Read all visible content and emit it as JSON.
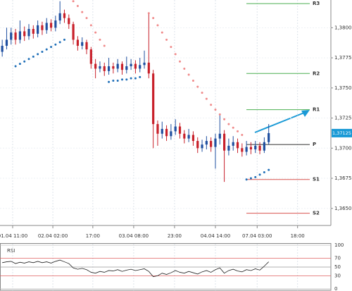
{
  "chart_data": {
    "type": "candlestick",
    "open": [
      1.378,
      1.3785,
      1.379,
      1.3796,
      1.379,
      1.3797,
      1.3793,
      1.3799,
      1.3795,
      1.3802,
      1.3798,
      1.3804,
      1.38,
      1.3806,
      1.3812,
      1.3808,
      1.3803,
      1.379,
      1.3785,
      1.3788,
      1.3782,
      1.377,
      1.3766,
      1.3768,
      1.3764,
      1.3768,
      1.3766,
      1.377,
      1.3765,
      1.3768,
      1.377,
      1.3766,
      1.3769,
      1.3771,
      1.3762,
      1.372,
      1.3712,
      1.3716,
      1.371,
      1.3714,
      1.3718,
      1.3712,
      1.3708,
      1.3711,
      1.3706,
      1.37,
      1.3703,
      1.3706,
      1.3701,
      1.3708,
      1.3712,
      1.3698,
      1.3702,
      1.3705,
      1.37,
      1.3697,
      1.3701,
      1.3699,
      1.3702,
      1.3698,
      1.3705
    ],
    "high": [
      1.379,
      1.38,
      1.38,
      1.3799,
      1.3806,
      1.3801,
      1.3803,
      1.3802,
      1.3806,
      1.3805,
      1.3808,
      1.3807,
      1.381,
      1.3822,
      1.3815,
      1.3811,
      1.3805,
      1.3793,
      1.3792,
      1.379,
      1.3784,
      1.3774,
      1.3772,
      1.3771,
      1.3775,
      1.3771,
      1.3774,
      1.3772,
      1.3776,
      1.3774,
      1.3773,
      1.3775,
      1.3781,
      1.3812,
      1.3765,
      1.3723,
      1.3722,
      1.3719,
      1.372,
      1.3724,
      1.3721,
      1.3715,
      1.3716,
      1.3714,
      1.3709,
      1.3707,
      1.371,
      1.3709,
      1.3712,
      1.3728,
      1.3715,
      1.3708,
      1.371,
      1.3708,
      1.3704,
      1.3706,
      1.3705,
      1.3706,
      1.3705,
      1.3709,
      1.372
    ],
    "low": [
      1.3776,
      1.3782,
      1.3786,
      1.3786,
      1.3787,
      1.3789,
      1.379,
      1.3791,
      1.3792,
      1.3794,
      1.3795,
      1.3797,
      1.3797,
      1.3803,
      1.3804,
      1.3799,
      1.3786,
      1.3781,
      1.3782,
      1.3778,
      1.3766,
      1.3758,
      1.3763,
      1.376,
      1.3761,
      1.3762,
      1.3763,
      1.3761,
      1.3762,
      1.3765,
      1.3762,
      1.3763,
      1.3766,
      1.3758,
      1.37,
      1.3702,
      1.3708,
      1.3706,
      1.3707,
      1.3711,
      1.3708,
      1.3704,
      1.3705,
      1.3702,
      1.3696,
      1.3697,
      1.3699,
      1.3697,
      1.3683,
      1.3703,
      1.3672,
      1.3694,
      1.3698,
      1.3696,
      1.3693,
      1.3694,
      1.3695,
      1.3696,
      1.3695,
      1.3696,
      1.3703
    ],
    "close": [
      1.3785,
      1.379,
      1.3796,
      1.379,
      1.3797,
      1.3793,
      1.3799,
      1.3795,
      1.3802,
      1.3798,
      1.3804,
      1.38,
      1.3806,
      1.3812,
      1.3808,
      1.3803,
      1.379,
      1.3785,
      1.3788,
      1.3782,
      1.377,
      1.3766,
      1.3768,
      1.3764,
      1.3768,
      1.3766,
      1.377,
      1.3765,
      1.3768,
      1.377,
      1.3766,
      1.3769,
      1.3771,
      1.3762,
      1.372,
      1.3712,
      1.3716,
      1.371,
      1.3714,
      1.3718,
      1.3712,
      1.3708,
      1.3711,
      1.3706,
      1.37,
      1.3703,
      1.3706,
      1.3701,
      1.3708,
      1.3712,
      1.3698,
      1.3702,
      1.3705,
      1.37,
      1.3697,
      1.3701,
      1.3699,
      1.3702,
      1.3698,
      1.3705,
      1.37125
    ],
    "up_color": "#1f4fa0",
    "down_color": "#c8202a",
    "sar": [
      null,
      null,
      null,
      1.3768,
      1.377,
      1.3772,
      1.3774,
      1.3776,
      1.3778,
      1.378,
      1.3782,
      1.3784,
      1.3786,
      1.3788,
      1.379,
      null,
      1.3822,
      1.3818,
      1.3813,
      1.3808,
      1.3802,
      1.3796,
      1.379,
      1.3785,
      1.3755,
      1.3756,
      1.3756,
      1.3757,
      1.3757,
      1.3758,
      1.3758,
      1.3759,
      null,
      1.3812,
      1.3808,
      1.3802,
      1.3796,
      1.379,
      1.3784,
      1.3778,
      1.3772,
      1.3766,
      1.3761,
      1.3756,
      1.3751,
      1.3746,
      1.3741,
      1.3736,
      1.3732,
      1.3728,
      1.3724,
      1.372,
      1.3717,
      1.3714,
      1.3711,
      1.3674,
      1.3675,
      1.3676,
      1.3678,
      1.368,
      1.3682
    ],
    "sar_colors": {
      "above": "#f08a8a",
      "below": "#1f6fb8"
    },
    "xlim": [
      -0.5,
      74
    ],
    "xticks": [
      {
        "value": 2.35,
        "label": "01.04 11:00"
      },
      {
        "value": 11.4,
        "label": "02.04 02:00"
      },
      {
        "value": 20.4,
        "label": "17:00"
      },
      {
        "value": 29.6,
        "label": "03.04 08:00"
      },
      {
        "value": 38.8,
        "label": "23:00"
      },
      {
        "value": 48.0,
        "label": "04.04 14:00"
      },
      {
        "value": 57.4,
        "label": "07.04 03:00"
      },
      {
        "value": 66.5,
        "label": "18:00"
      }
    ],
    "ylim": [
      1.3637,
      1.3823
    ],
    "yticks": [
      {
        "value": 1.365,
        "label": "1,3650"
      },
      {
        "value": 1.3675,
        "label": "1,3675"
      },
      {
        "value": 1.37,
        "label": "1,3700"
      },
      {
        "value": 1.3725,
        "label": "1,3725"
      },
      {
        "value": 1.375,
        "label": "1,3750"
      },
      {
        "value": 1.3775,
        "label": "1,3775"
      },
      {
        "value": 1.38,
        "label": "1,3800"
      }
    ],
    "grid": true,
    "last_price": {
      "value": 1.37125,
      "label": "1,37125",
      "color": "#1a9ad6"
    },
    "pivots": [
      {
        "name": "R3",
        "value": 1.382,
        "color": "#4caf50"
      },
      {
        "name": "R2",
        "value": 1.3762,
        "color": "#4caf50"
      },
      {
        "name": "R1",
        "value": 1.3732,
        "color": "#4caf50"
      },
      {
        "name": "P",
        "value": 1.3703,
        "color": "#333333"
      },
      {
        "name": "S1",
        "value": 1.3674,
        "color": "#d9534f"
      },
      {
        "name": "S2",
        "value": 1.3646,
        "color": "#d9534f"
      }
    ],
    "rsi": {
      "title": "RSI",
      "values": [
        60,
        62,
        63,
        58,
        61,
        59,
        62,
        60,
        63,
        60,
        62,
        59,
        63,
        66,
        62,
        58,
        48,
        45,
        47,
        44,
        38,
        36,
        40,
        38,
        42,
        41,
        44,
        40,
        43,
        45,
        42,
        44,
        46,
        40,
        28,
        30,
        36,
        33,
        37,
        42,
        38,
        36,
        40,
        37,
        34,
        39,
        42,
        38,
        44,
        48,
        36,
        42,
        45,
        41,
        39,
        44,
        42,
        46,
        43,
        52,
        62
      ],
      "color": "#222222",
      "ylim": [
        0,
        100
      ],
      "yticks": [
        0,
        30,
        50,
        70,
        100
      ],
      "grid_colors": [
        "#bbbbbb",
        "#e06060",
        "#999999",
        "#e06060",
        "#bbbbbb"
      ]
    }
  }
}
